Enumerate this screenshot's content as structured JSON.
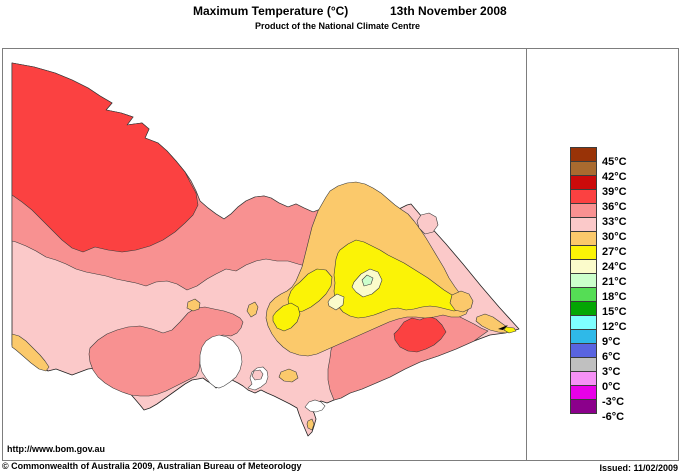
{
  "header": {
    "title": "Maximum Temperature (°C)",
    "date": "13th November 2008",
    "subtitle": "Product of the National Climate Centre"
  },
  "footer": {
    "url": "http://www.bom.gov.au",
    "copyright": "© Commonwealth of Australia 2009, Australian Bureau of Meteorology",
    "issued": "Issued: 11/02/2009"
  },
  "legend": {
    "unit": "°C",
    "boxes": [
      "#993307",
      "#A96A2F",
      "#CC0A0A",
      "#FB4141",
      "#F89191",
      "#FBC9C9",
      "#FBC96B",
      "#FBF306",
      "#FBFBCB",
      "#CCFFCC",
      "#55DD55",
      "#04A604",
      "#7FFFFF",
      "#2FB9E8",
      "#5964E0",
      "#C0C0C0",
      "#F691F6",
      "#E800E8",
      "#8B008B"
    ],
    "labels": [
      "45°C",
      "42°C",
      "39°C",
      "36°C",
      "33°C",
      "30°C",
      "27°C",
      "24°C",
      "21°C",
      "18°C",
      "15°C",
      "12°C",
      "9°C",
      "6°C",
      "3°C",
      "0°C",
      "-3°C",
      "-6°C"
    ]
  },
  "map_colors": {
    "band_36_39": "#FB4141",
    "band_33_36": "#F89191",
    "band_30_33": "#FBC9C9",
    "band_27_30": "#FBC96B",
    "band_24_27": "#FBF306",
    "band_21_24": "#FBFBCB",
    "band_18_21": "#CCFFCC",
    "water": "#FFFFFF",
    "marker": "#000000"
  }
}
